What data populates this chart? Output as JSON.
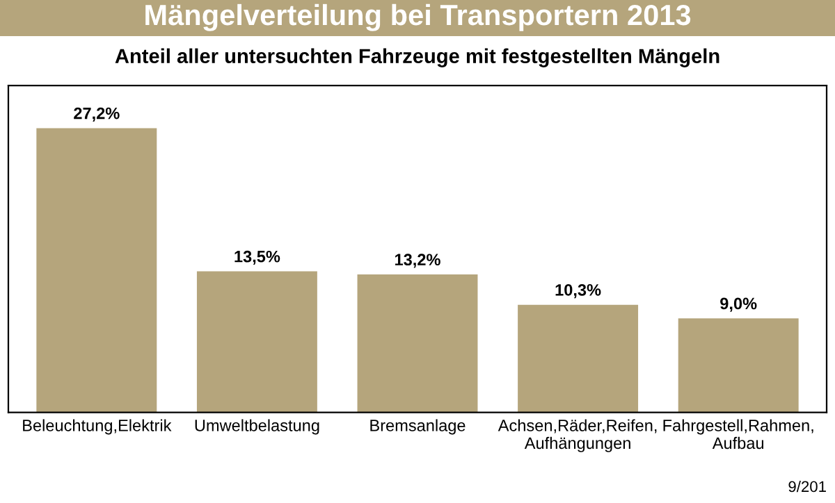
{
  "chart_data": {
    "type": "bar",
    "title": "Mängelverteilung bei Transportern 2013",
    "subtitle": "Anteil aller untersuchten Fahrzeuge mit festgestellten Mängeln",
    "categories": [
      "Beleuchtung,Elektrik",
      "Umweltbelastung",
      "Bremsanlage",
      "Achsen,Räder,Reifen,\nAufhängungen",
      "Fahrgestell,Rahmen,\nAufbau"
    ],
    "values": [
      27.2,
      13.5,
      13.2,
      10.3,
      9.0
    ],
    "value_labels": [
      "27,2%",
      "13,5%",
      "13,2%",
      "10,3%",
      "9,0%"
    ],
    "color": "#b5a57c",
    "annotations": [
      "9/201"
    ],
    "grid": false,
    "legend": false,
    "tick_labels": "x"
  }
}
